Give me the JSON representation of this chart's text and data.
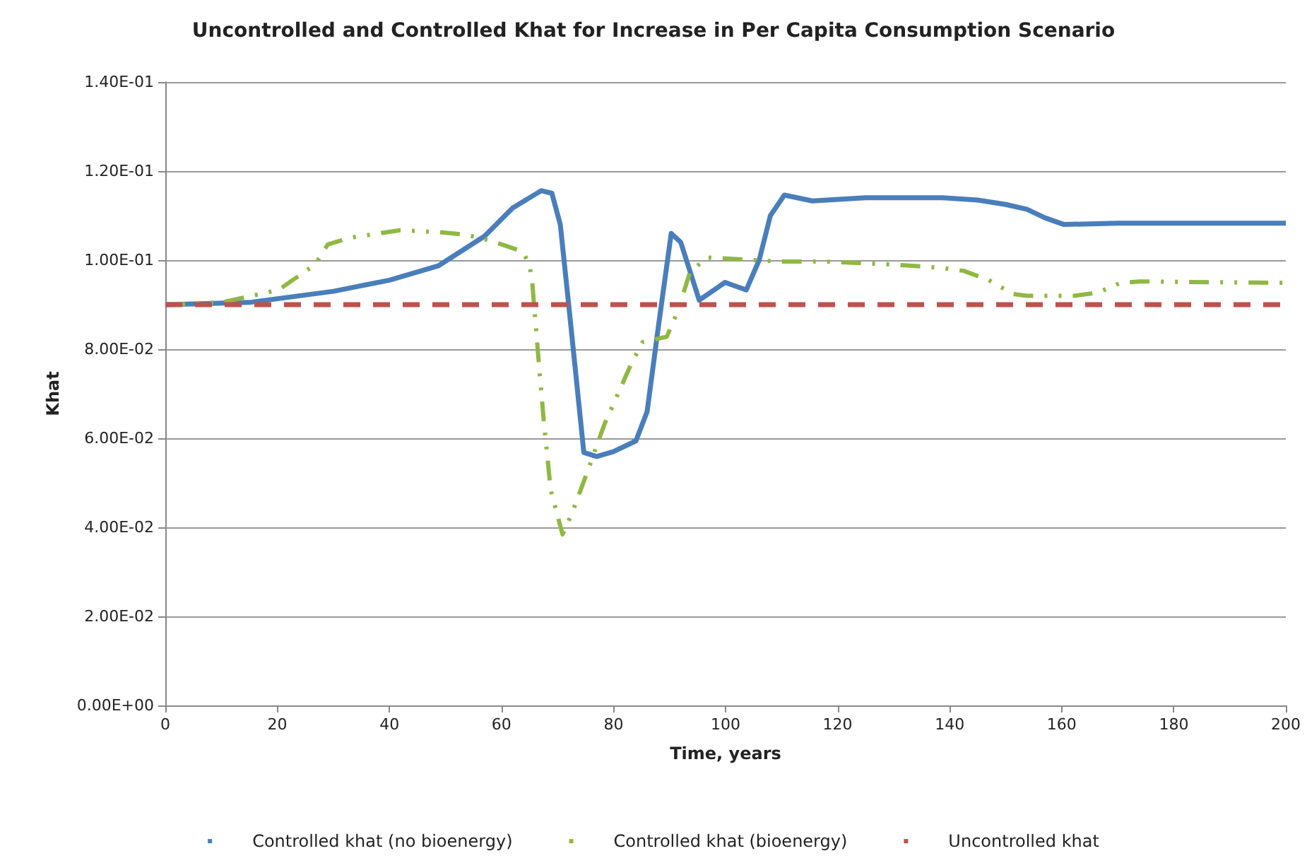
{
  "chart_data": {
    "type": "line",
    "title": "Uncontrolled and Controlled Khat for Increase in Per Capita Consumption Scenario",
    "xlabel": "Time, years",
    "ylabel": "Khat",
    "xlim": [
      0,
      200
    ],
    "xticks": [
      0,
      20,
      40,
      60,
      80,
      100,
      120,
      140,
      160,
      180,
      200
    ],
    "ylim": [
      0,
      0.14
    ],
    "yticks": [
      {
        "value": 0,
        "label": "0.00E+00"
      },
      {
        "value": 0.02,
        "label": "2.00E-02"
      },
      {
        "value": 0.04,
        "label": "4.00E-02"
      },
      {
        "value": 0.06,
        "label": "6.00E-02"
      },
      {
        "value": 0.08,
        "label": "8.00E-02"
      },
      {
        "value": 0.1,
        "label": "1.00E-01"
      },
      {
        "value": 0.12,
        "label": "1.20E-01"
      },
      {
        "value": 0.14,
        "label": "1.40E-01"
      }
    ],
    "grid": "y",
    "legend": "bottom",
    "marker": "none",
    "series": [
      {
        "name": "Controlled khat (no bioenergy)",
        "color": "#4a7ebb",
        "line_style": "solid",
        "x": [
          0,
          15,
          30,
          40,
          48.7,
          57,
          62,
          67.1,
          69,
          70.5,
          72,
          74.7,
          77,
          80,
          84,
          86,
          88,
          90.3,
          92,
          95.3,
          99.9,
          103.7,
          106,
          108,
          110.5,
          115.5,
          125,
          138.7,
          145,
          150,
          153.8,
          157,
          160.4,
          170,
          200
        ],
        "values": [
          0.09,
          0.0905,
          0.093,
          0.0955,
          0.0987,
          0.1054,
          0.1117,
          0.1156,
          0.115,
          0.108,
          0.09,
          0.0568,
          0.0559,
          0.057,
          0.0594,
          0.066,
          0.085,
          0.106,
          0.104,
          0.091,
          0.095,
          0.0933,
          0.1,
          0.11,
          0.1146,
          0.1133,
          0.114,
          0.114,
          0.1135,
          0.1125,
          0.1114,
          0.1095,
          0.108,
          0.1083,
          0.1083
        ]
      },
      {
        "name": "Controlled khat (bioenergy)",
        "color": "#8fb843",
        "line_style": "dashed",
        "x": [
          0,
          10,
          20.2,
          26.7,
          29,
          32.8,
          41.9,
          48.7,
          53.7,
          58,
          63.8,
          65,
          65.5,
          66.8,
          67.6,
          68.8,
          70.9,
          72.6,
          75.2,
          78.4,
          83.2,
          85.2,
          89.5,
          91.5,
          93.6,
          96.6,
          109.2,
          117.3,
          130,
          138.2,
          142.5,
          147,
          151.3,
          153.8,
          162.2,
          166.5,
          170.5,
          174,
          200
        ],
        "values": [
          0.09,
          0.0905,
          0.0933,
          0.099,
          0.1035,
          0.105,
          0.1067,
          0.1063,
          0.1057,
          0.1044,
          0.1019,
          0.099,
          0.0949,
          0.0749,
          0.0632,
          0.0483,
          0.0384,
          0.0432,
          0.052,
          0.0632,
          0.0768,
          0.0816,
          0.0828,
          0.0886,
          0.0971,
          0.1006,
          0.0997,
          0.0997,
          0.099,
          0.0983,
          0.0976,
          0.0955,
          0.0924,
          0.092,
          0.092,
          0.0927,
          0.0949,
          0.0952,
          0.0949
        ]
      },
      {
        "name": "Uncontrolled khat",
        "color": "#c0504d",
        "line_style": "dashed",
        "x": [
          0,
          200
        ],
        "values": [
          0.09,
          0.09
        ]
      }
    ]
  }
}
